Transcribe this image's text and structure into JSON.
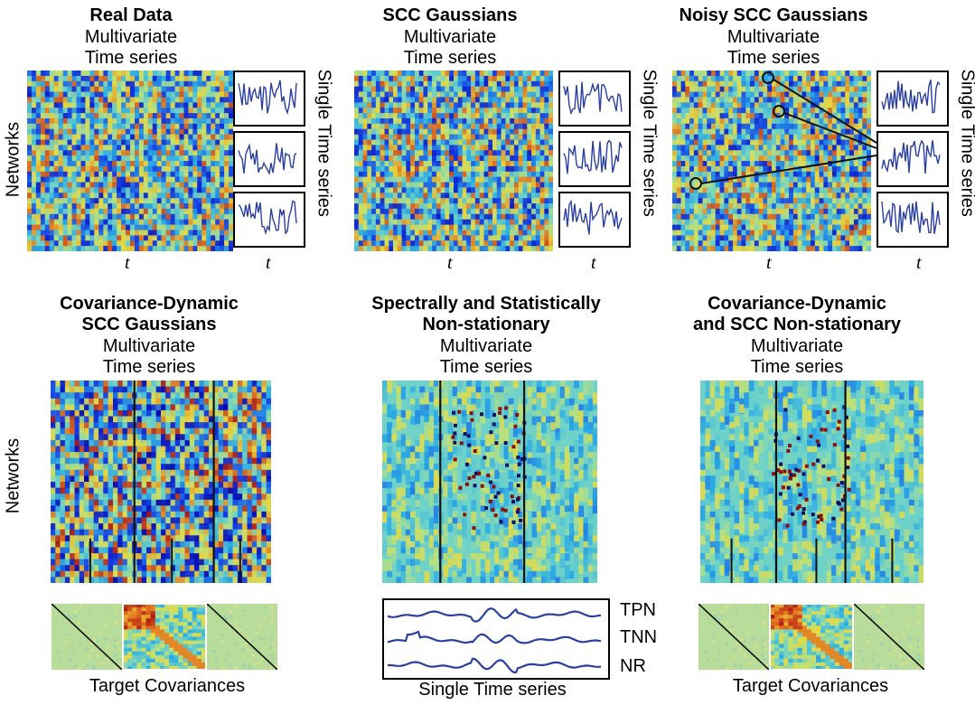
{
  "top_row": [
    {
      "title": "Real Data",
      "sub1": "Multivariate",
      "sub2": "Time series",
      "t_main": "t",
      "t_small": "t",
      "side_label": "Single Time series"
    },
    {
      "title": "SCC Gaussians",
      "sub1": "Multivariate",
      "sub2": "Time series",
      "t_main": "t",
      "t_small": "t",
      "side_label": "Single Time series"
    },
    {
      "title": "Noisy SCC Gaussians",
      "sub1": "Multivariate",
      "sub2": "Time series",
      "t_main": "t",
      "t_small": "t",
      "side_label": "Single Time series"
    }
  ],
  "bottom_row": [
    {
      "title1": "Covariance-Dynamic",
      "title2": "SCC Gaussians",
      "sub1": "Multivariate",
      "sub2": "Time series",
      "caption": "Target Covariances"
    },
    {
      "title1": "Spectrally and Statistically",
      "title2": "Non-stationary",
      "sub1": "Multivariate",
      "sub2": "Time series",
      "caption": "Single Time series"
    },
    {
      "title1": "Covariance-Dynamic",
      "title2": "and SCC Non-stationary",
      "sub1": "Multivariate",
      "sub2": "Time series",
      "caption": "Target Covariances"
    }
  ],
  "axis_label": "Networks",
  "network_labels": [
    "TPN",
    "TNN",
    "NR"
  ],
  "colors": {
    "trace": "#2a3fa0",
    "line": "#111111"
  }
}
